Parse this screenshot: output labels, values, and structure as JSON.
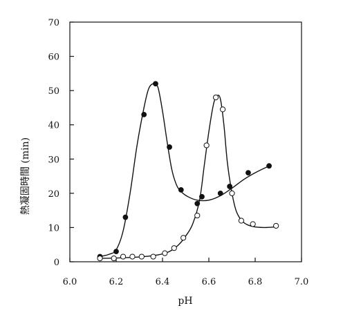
{
  "chart_data": {
    "type": "scatter",
    "title": "",
    "xlabel": "pH",
    "ylabel": "熱凝固時間 (min)",
    "xlim": [
      6.0,
      7.0
    ],
    "ylim": [
      0,
      70
    ],
    "x_ticks": [
      6.0,
      6.2,
      6.4,
      6.6,
      6.8,
      7.0
    ],
    "x_tick_labels": [
      "6.0",
      "6.2",
      "6.4",
      "6.6",
      "6.8",
      "7.0"
    ],
    "y_ticks": [
      0,
      10,
      20,
      30,
      40,
      50,
      60,
      70
    ],
    "y_tick_labels": [
      "0",
      "10",
      "20",
      "30",
      "40",
      "50",
      "60",
      "70"
    ],
    "grid": false,
    "legend": "none",
    "series": [
      {
        "marker": "filled-circle",
        "color": "#111111",
        "points": [
          {
            "x": 6.13,
            "y": 1.5
          },
          {
            "x": 6.2,
            "y": 3.0
          },
          {
            "x": 6.24,
            "y": 13.0
          },
          {
            "x": 6.32,
            "y": 43.0
          },
          {
            "x": 6.37,
            "y": 52.0
          },
          {
            "x": 6.43,
            "y": 33.5
          },
          {
            "x": 6.48,
            "y": 21.0
          },
          {
            "x": 6.55,
            "y": 17.0
          },
          {
            "x": 6.57,
            "y": 19.0
          },
          {
            "x": 6.65,
            "y": 20.0
          },
          {
            "x": 6.69,
            "y": 22.0
          },
          {
            "x": 6.77,
            "y": 26.0
          },
          {
            "x": 6.86,
            "y": 28.0
          }
        ],
        "curve": [
          [
            6.13,
            1.5
          ],
          [
            6.17,
            2.2
          ],
          [
            6.2,
            3.5
          ],
          [
            6.23,
            9.0
          ],
          [
            6.26,
            20.0
          ],
          [
            6.29,
            34.0
          ],
          [
            6.32,
            45.0
          ],
          [
            6.34,
            50.5
          ],
          [
            6.36,
            52.0
          ],
          [
            6.38,
            51.0
          ],
          [
            6.4,
            44.0
          ],
          [
            6.42,
            35.0
          ],
          [
            6.44,
            27.0
          ],
          [
            6.46,
            22.5
          ],
          [
            6.48,
            20.5
          ],
          [
            6.51,
            19.0
          ],
          [
            6.55,
            18.0
          ],
          [
            6.6,
            18.0
          ],
          [
            6.65,
            19.3
          ],
          [
            6.7,
            21.5
          ],
          [
            6.75,
            24.0
          ],
          [
            6.8,
            26.0
          ],
          [
            6.86,
            28.0
          ]
        ]
      },
      {
        "marker": "open-circle",
        "color": "#111111",
        "points": [
          {
            "x": 6.13,
            "y": 1.0
          },
          {
            "x": 6.19,
            "y": 1.0
          },
          {
            "x": 6.23,
            "y": 1.5
          },
          {
            "x": 6.27,
            "y": 1.5
          },
          {
            "x": 6.31,
            "y": 1.5
          },
          {
            "x": 6.36,
            "y": 1.5
          },
          {
            "x": 6.41,
            "y": 2.5
          },
          {
            "x": 6.45,
            "y": 4.0
          },
          {
            "x": 6.49,
            "y": 7.0
          },
          {
            "x": 6.55,
            "y": 13.5
          },
          {
            "x": 6.59,
            "y": 34.0
          },
          {
            "x": 6.63,
            "y": 48.0
          },
          {
            "x": 6.66,
            "y": 44.5
          },
          {
            "x": 6.7,
            "y": 20.0
          },
          {
            "x": 6.74,
            "y": 12.0
          },
          {
            "x": 6.79,
            "y": 11.0
          },
          {
            "x": 6.89,
            "y": 10.5
          }
        ],
        "curve": [
          [
            6.13,
            1.0
          ],
          [
            6.2,
            1.1
          ],
          [
            6.3,
            1.4
          ],
          [
            6.38,
            2.0
          ],
          [
            6.43,
            3.0
          ],
          [
            6.47,
            5.0
          ],
          [
            6.5,
            7.5
          ],
          [
            6.53,
            11.0
          ],
          [
            6.56,
            18.0
          ],
          [
            6.58,
            28.0
          ],
          [
            6.6,
            38.0
          ],
          [
            6.62,
            46.0
          ],
          [
            6.635,
            48.5
          ],
          [
            6.65,
            47.5
          ],
          [
            6.665,
            40.0
          ],
          [
            6.68,
            29.0
          ],
          [
            6.7,
            20.0
          ],
          [
            6.72,
            14.5
          ],
          [
            6.75,
            11.5
          ],
          [
            6.79,
            10.3
          ],
          [
            6.84,
            10.0
          ],
          [
            6.89,
            10.2
          ]
        ]
      }
    ]
  }
}
